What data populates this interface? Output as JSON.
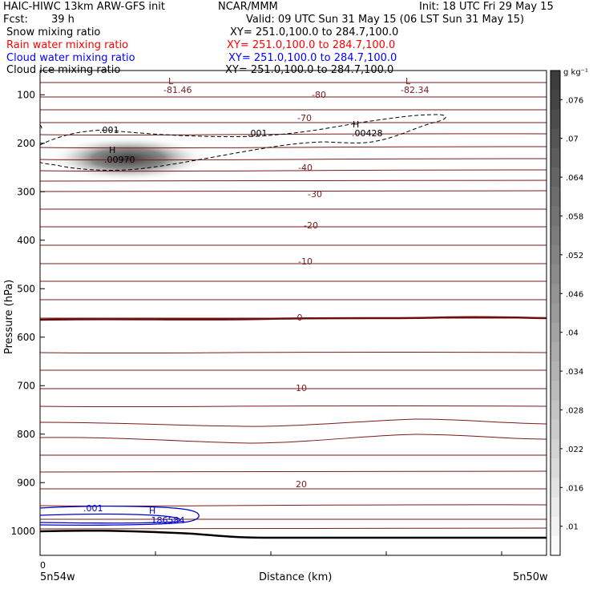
{
  "header": {
    "title_left": "HAIC-HIWC 13km ARW-GFS init",
    "title_center": "NCAR/MMM",
    "init": "Init: 18 UTC Fri 29 May 15",
    "fcst_label": "Fcst:",
    "fcst_value": "39 h",
    "valid": "Valid: 09 UTC Sun 31 May 15 (06 LST Sun 31 May 15)",
    "fields": [
      {
        "name": "Snow mixing ratio",
        "xy": "XY= 251.0,100.0 to 284.7,100.0",
        "color": "#000000"
      },
      {
        "name": "Rain water mixing ratio",
        "xy": "XY= 251.0,100.0 to 284.7,100.0",
        "color": "#ff0000"
      },
      {
        "name": "Cloud water mixing ratio",
        "xy": "XY= 251.0,100.0 to 284.7,100.0",
        "color": "#0000ff"
      },
      {
        "name": "Cloud ice mixing ratio",
        "xy": "XY= 251.0,100.0 to 284.7,100.0",
        "color": "#000000"
      }
    ]
  },
  "chart_data": {
    "type": "cross-section",
    "xlabel": "Distance (km)",
    "ylabel": "Pressure (hPa)",
    "x_ticks": [
      "0",
      "5n54w",
      "5n50w"
    ],
    "ylim": [
      1050,
      50
    ],
    "y_ticks": [
      100,
      200,
      300,
      400,
      500,
      600,
      700,
      800,
      900,
      1000
    ],
    "colorbar": {
      "unit": "g kg⁻¹",
      "ticks": [
        ".01",
        ".016",
        ".022",
        ".028",
        ".034",
        ".04",
        ".046",
        ".052",
        ".058",
        ".064",
        ".07",
        ".076"
      ]
    },
    "temperature_contours": {
      "color": "#7a1a1a",
      "labels": [
        "-80",
        "-70",
        "-40",
        "-30",
        "-20",
        "-10",
        "0",
        "10",
        "20"
      ]
    },
    "annotations": [
      {
        "text": "L",
        "value": "-81.46",
        "color": "#7a1a1a"
      },
      {
        "text": "L",
        "value": "-82.34",
        "color": "#7a1a1a"
      },
      {
        "text": "H",
        "value": ".00970",
        "color": "#000000"
      },
      {
        "text": "H",
        "value": ".00428",
        "color": "#000000"
      },
      {
        "text": "H",
        "value": ".186584",
        "color": "#0000cc"
      },
      {
        "text": ".001",
        "value": "",
        "color": "#000000"
      },
      {
        "text": ".001",
        "value": "",
        "color": "#000000"
      },
      {
        "text": ".001",
        "value": "",
        "color": "#0000cc"
      }
    ]
  }
}
